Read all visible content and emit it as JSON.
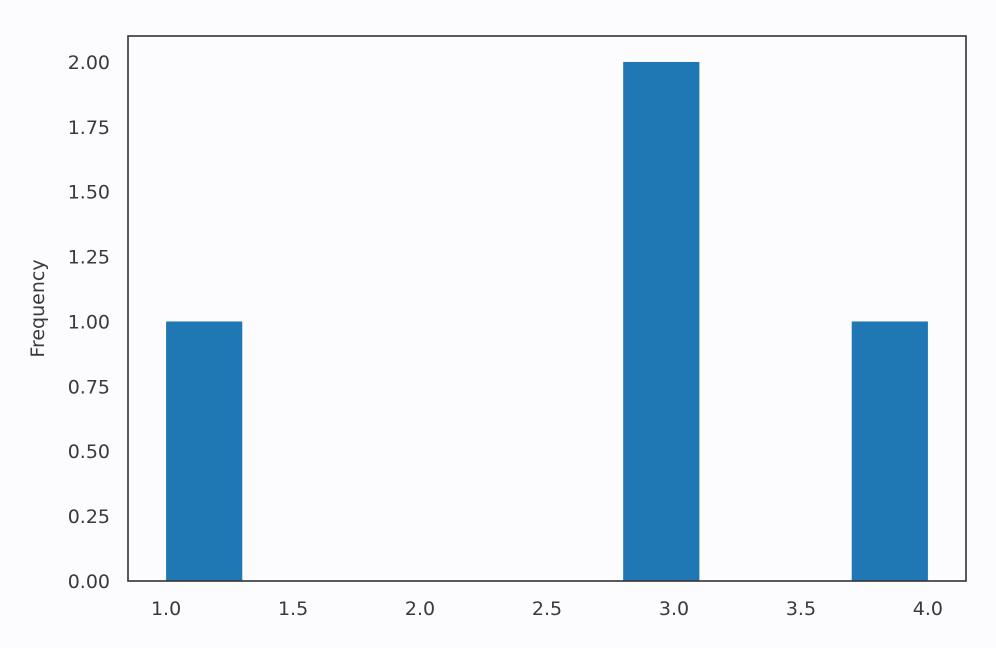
{
  "chart_data": {
    "type": "bar",
    "subtype": "histogram",
    "ylabel": "Frequency",
    "xlabel": "",
    "xlim": [
      0.85,
      4.15
    ],
    "ylim": [
      0,
      2.1
    ],
    "x_ticks": [
      "1.0",
      "1.5",
      "2.0",
      "2.5",
      "3.0",
      "3.5",
      "4.0"
    ],
    "y_ticks": [
      "0.00",
      "0.25",
      "0.50",
      "0.75",
      "1.00",
      "1.25",
      "1.50",
      "1.75",
      "2.00"
    ],
    "bins": [
      {
        "start": 1.0,
        "end": 1.3,
        "value": 1
      },
      {
        "start": 1.3,
        "end": 1.6,
        "value": 0
      },
      {
        "start": 1.6,
        "end": 1.9,
        "value": 0
      },
      {
        "start": 1.9,
        "end": 2.2,
        "value": 0
      },
      {
        "start": 2.2,
        "end": 2.5,
        "value": 0
      },
      {
        "start": 2.5,
        "end": 2.8,
        "value": 0
      },
      {
        "start": 2.8,
        "end": 3.1,
        "value": 2
      },
      {
        "start": 3.1,
        "end": 3.4,
        "value": 0
      },
      {
        "start": 3.4,
        "end": 3.7,
        "value": 0
      },
      {
        "start": 3.7,
        "end": 4.0,
        "value": 1
      }
    ],
    "bar_color": "#1f77b4",
    "grid": false,
    "legend": "none"
  }
}
